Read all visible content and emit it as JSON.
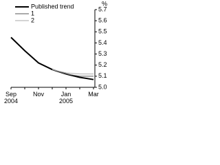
{
  "chart_data": {
    "type": "line",
    "y_unit": "%",
    "categories": [
      "Sep 2004",
      null,
      "Nov",
      null,
      "Jan 2005",
      null,
      "Mar"
    ],
    "series": [
      {
        "name": "Published trend",
        "color": "#000000",
        "width": 2,
        "values": [
          5.45,
          5.33,
          5.22,
          5.16,
          5.12,
          5.09,
          5.07
        ]
      },
      {
        "name": "1",
        "color": "#555555",
        "width": 1,
        "values": [
          null,
          null,
          null,
          5.16,
          5.12,
          5.1,
          5.1
        ]
      },
      {
        "name": "2",
        "color": "#aaaaaa",
        "width": 1,
        "values": [
          null,
          null,
          null,
          5.16,
          5.13,
          5.12,
          5.12
        ]
      }
    ],
    "ylim": [
      5,
      5.7
    ],
    "yticks": [
      {
        "value": 5,
        "label": "5.0"
      },
      5.1,
      5.2,
      5.3,
      5.4,
      5.5,
      5.6,
      5.7
    ],
    "legend": "top-left"
  }
}
